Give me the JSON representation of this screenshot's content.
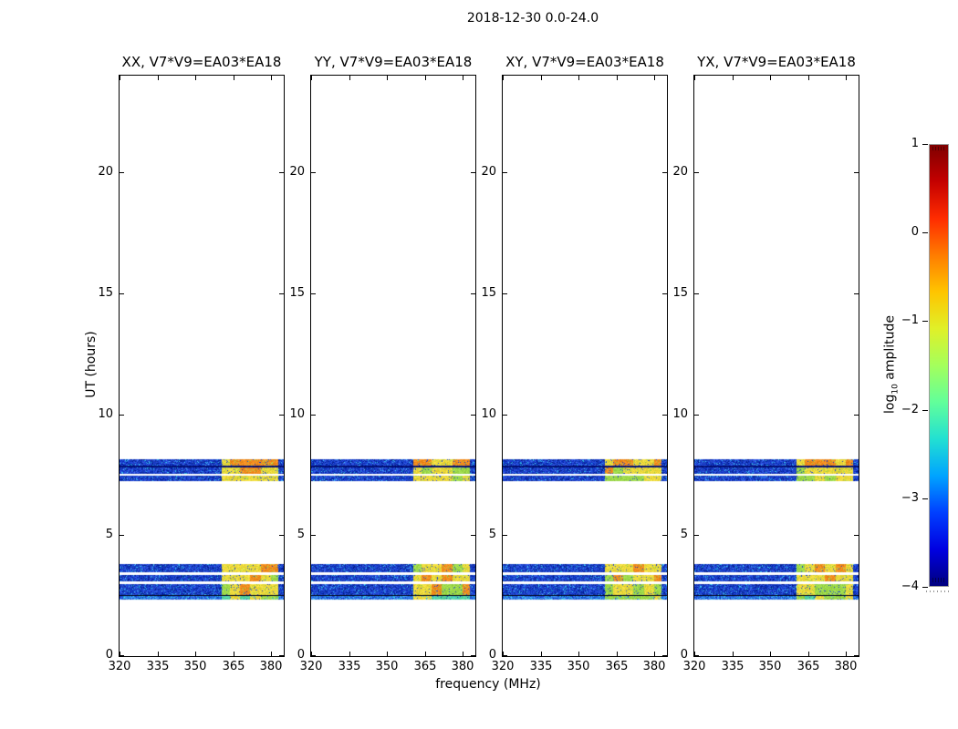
{
  "chart_data": {
    "type": "heatmap",
    "title": "2018-12-30 0.0-24.0",
    "xlabel": "frequency (MHz)",
    "ylabel": "UT (hours)",
    "xlim": [
      320,
      385
    ],
    "ylim": [
      0,
      24
    ],
    "grid": false,
    "xticks": {
      "values": [
        320,
        335,
        350,
        365,
        380
      ],
      "labels": [
        "320",
        "335",
        "350",
        "365",
        "380"
      ]
    },
    "yticks": {
      "values": [
        0,
        5,
        10,
        15,
        20
      ],
      "labels": [
        "0",
        "5",
        "10",
        "15",
        "20"
      ]
    },
    "panels": [
      {
        "pol": "xx",
        "title": "XX, V7*V9=EA03*EA18",
        "orange_bias": 0.4
      },
      {
        "pol": "yy",
        "title": "YY, V7*V9=EA03*EA18",
        "orange_bias": 0.55
      },
      {
        "pol": "xy",
        "title": "XY, V7*V9=EA03*EA18",
        "orange_bias": 0.65
      },
      {
        "pol": "yx",
        "title": "YX, V7*V9=EA03*EA18",
        "orange_bias": 0.45
      }
    ],
    "colorbar": {
      "label_prefix": "log",
      "label_sub": "10",
      "label_suffix": " amplitude",
      "vmin": -4,
      "vmax": 1,
      "ticks": [
        1,
        0,
        -1,
        -2,
        -3,
        -4
      ],
      "tick_labels": [
        "1",
        "0",
        "−1",
        "−2",
        "−3",
        "−4"
      ],
      "colormap": "jet",
      "colormap_stops": [
        "#00007f",
        "#0000e1",
        "#0040ff",
        "#00a4ff",
        "#22e0d2",
        "#62ff9a",
        "#a4ff5c",
        "#e0f028",
        "#ffc400",
        "#ff7c00",
        "#ff2c00",
        "#c40000",
        "#7f0000"
      ]
    },
    "rfi_band_mhz": [
      360.5,
      383.0
    ],
    "rfi_block_edges_mhz": [
      363.8,
      367.8,
      371.8,
      375.8,
      379.8
    ],
    "observation_bands": [
      {
        "ut_range": [
          7.23,
          8.14
        ],
        "rows": [
          {
            "ut": [
              7.87,
              8.14
            ],
            "kind": "noise",
            "rfi": "orange"
          },
          {
            "ut": [
              7.8,
              7.87
            ],
            "kind": "dark"
          },
          {
            "ut": [
              7.54,
              7.8
            ],
            "kind": "noise",
            "rfi": "yellow"
          },
          {
            "ut": [
              7.46,
              7.54
            ],
            "kind": "white"
          },
          {
            "ut": [
              7.23,
              7.46
            ],
            "kind": "noise",
            "rfi": "mixed"
          }
        ]
      },
      {
        "ut_range": [
          2.34,
          3.81
        ],
        "rows": [
          {
            "ut": [
              3.47,
              3.81
            ],
            "kind": "noise",
            "rfi": "yellow"
          },
          {
            "ut": [
              3.35,
              3.47
            ],
            "kind": "white"
          },
          {
            "ut": [
              3.09,
              3.35
            ],
            "kind": "noise",
            "rfi": "yellow"
          },
          {
            "ut": [
              2.98,
              3.09
            ],
            "kind": "white"
          },
          {
            "ut": [
              2.52,
              2.98
            ],
            "kind": "noise",
            "rfi": "mixed"
          },
          {
            "ut": [
              2.49,
              2.52
            ],
            "kind": "black"
          },
          {
            "ut": [
              2.34,
              2.49
            ],
            "kind": "bright",
            "rfi": "green"
          }
        ]
      }
    ],
    "palette": {
      "background": "#ffffff",
      "frame": "#000000",
      "noise_blue": "#1d43d2",
      "noise_dark": "#0e2da0",
      "noise_mid": "#2a5ae0",
      "cyan_speckle": "#35c0e8",
      "bright_blue": "#2f7de8",
      "rfi_yellow": "#ecd93c",
      "rfi_orange": "#f08c1e",
      "rfi_green": "#9cd84a",
      "rfi_teal": "#55d4a0",
      "stripe_line": "#1e3ecc",
      "dark_line": "#001075",
      "black_line": "#03071d",
      "colorbar_border": "#999999"
    }
  }
}
